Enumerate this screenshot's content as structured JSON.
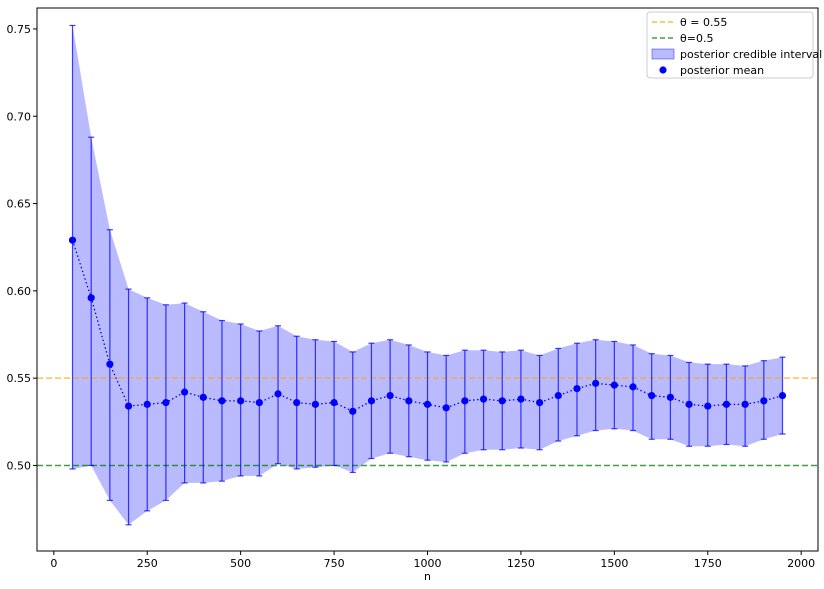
{
  "chart_data": {
    "type": "line",
    "title": "",
    "xlabel": "n",
    "ylabel": "",
    "xlim": [
      -45,
      2045
    ],
    "ylim": [
      0.451,
      0.762
    ],
    "xticks": [
      0,
      250,
      500,
      750,
      1000,
      1250,
      1500,
      1750,
      2000
    ],
    "yticks": [
      0.5,
      0.55,
      0.6,
      0.65,
      0.7,
      0.75
    ],
    "ytick_labels": [
      "0.50",
      "0.55",
      "0.60",
      "0.65",
      "0.70",
      "0.75"
    ],
    "grid": false,
    "legend_position": "top-right",
    "x": [
      50,
      100,
      150,
      200,
      250,
      300,
      350,
      400,
      450,
      500,
      550,
      600,
      650,
      700,
      750,
      800,
      850,
      900,
      950,
      1000,
      1050,
      1100,
      1150,
      1200,
      1250,
      1300,
      1350,
      1400,
      1450,
      1500,
      1550,
      1600,
      1650,
      1700,
      1750,
      1800,
      1850,
      1900,
      1950
    ],
    "series": [
      {
        "name": "posterior mean",
        "color": "#0000ff",
        "values": [
          0.629,
          0.596,
          0.558,
          0.534,
          0.535,
          0.536,
          0.542,
          0.539,
          0.537,
          0.537,
          0.536,
          0.541,
          0.536,
          0.535,
          0.536,
          0.531,
          0.537,
          0.54,
          0.537,
          0.535,
          0.533,
          0.537,
          0.538,
          0.537,
          0.538,
          0.536,
          0.54,
          0.544,
          0.547,
          0.546,
          0.545,
          0.54,
          0.539,
          0.535,
          0.534,
          0.535,
          0.535,
          0.537,
          0.54
        ]
      },
      {
        "name": "posterior credible interval",
        "color": "#0000ff",
        "lower": [
          0.498,
          0.5,
          0.48,
          0.466,
          0.474,
          0.48,
          0.49,
          0.49,
          0.491,
          0.494,
          0.494,
          0.501,
          0.498,
          0.499,
          0.5,
          0.496,
          0.504,
          0.507,
          0.505,
          0.503,
          0.502,
          0.507,
          0.509,
          0.509,
          0.51,
          0.509,
          0.514,
          0.517,
          0.52,
          0.521,
          0.52,
          0.515,
          0.515,
          0.511,
          0.511,
          0.512,
          0.511,
          0.515,
          0.518
        ],
        "upper": [
          0.752,
          0.688,
          0.635,
          0.601,
          0.596,
          0.592,
          0.593,
          0.588,
          0.583,
          0.581,
          0.577,
          0.58,
          0.574,
          0.572,
          0.571,
          0.565,
          0.57,
          0.572,
          0.569,
          0.565,
          0.563,
          0.566,
          0.566,
          0.565,
          0.566,
          0.563,
          0.567,
          0.57,
          0.572,
          0.571,
          0.569,
          0.564,
          0.563,
          0.559,
          0.558,
          0.558,
          0.557,
          0.56,
          0.562
        ]
      }
    ],
    "reference_lines": [
      {
        "label": "θ = 0.55",
        "value": 0.55,
        "color": "#ffa500"
      },
      {
        "label": "θ=0.5",
        "value": 0.5,
        "color": "#008000"
      }
    ],
    "legend": [
      {
        "label": "θ = 0.55",
        "kind": "dashed-line",
        "color": "#ffa500"
      },
      {
        "label": "θ=0.5",
        "kind": "dashed-line",
        "color": "#008000"
      },
      {
        "label": "posterior credible interval",
        "kind": "patch",
        "color": "#0000ff"
      },
      {
        "label": "posterior mean",
        "kind": "marker",
        "color": "#0000ff"
      }
    ]
  }
}
